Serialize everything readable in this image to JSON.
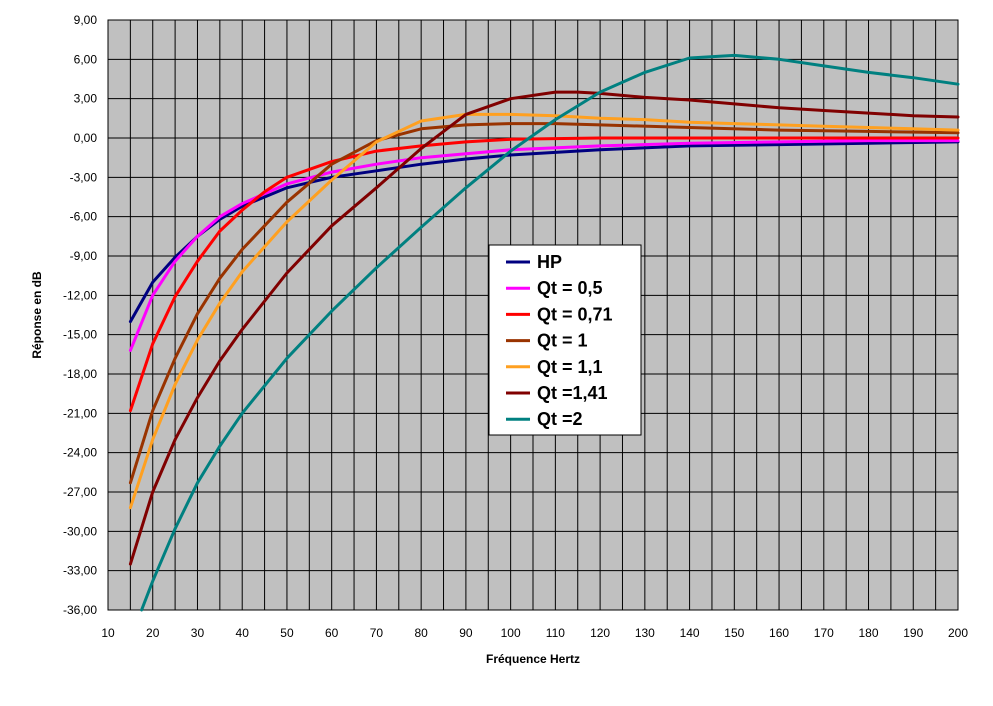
{
  "chart_data": {
    "type": "line",
    "title": "",
    "xlabel": "Fréquence Hertz",
    "ylabel": "Réponse en dB",
    "xlim": [
      10,
      200
    ],
    "ylim": [
      -36,
      9
    ],
    "xticks": [
      "10",
      "20",
      "30",
      "40",
      "50",
      "60",
      "70",
      "80",
      "90",
      "100",
      "110",
      "120",
      "130",
      "140",
      "150",
      "160",
      "170",
      "180",
      "190",
      "200"
    ],
    "yticks": [
      "9,00",
      "6,00",
      "3,00",
      "0,00",
      "-3,00",
      "-6,00",
      "-9,00",
      "-12,00",
      "-15,00",
      "-18,00",
      "-21,00",
      "-24,00",
      "-27,00",
      "-30,00",
      "-33,00",
      "-36,00"
    ],
    "grid": true,
    "legend_position": "center",
    "colors": {
      "plot_background": "#c0c0c0",
      "grid": "#000000"
    },
    "series": [
      {
        "name": "HP",
        "color": "#000080",
        "x": [
          15,
          20,
          25,
          30,
          35,
          40,
          50,
          60,
          70,
          80,
          90,
          100,
          120,
          140,
          160,
          180,
          200
        ],
        "y": [
          -14.0,
          -11.0,
          -9.1,
          -7.5,
          -6.2,
          -5.2,
          -3.8,
          -3.0,
          -2.5,
          -2.0,
          -1.6,
          -1.3,
          -0.9,
          -0.6,
          -0.5,
          -0.4,
          -0.3
        ]
      },
      {
        "name": "Qt = 0,5",
        "color": "#ff00ff",
        "x": [
          15,
          20,
          25,
          30,
          35,
          40,
          50,
          60,
          70,
          80,
          90,
          100,
          120,
          140,
          160,
          180,
          200
        ],
        "y": [
          -16.2,
          -12.0,
          -9.4,
          -7.5,
          -6.0,
          -5.0,
          -3.5,
          -2.6,
          -2.0,
          -1.5,
          -1.2,
          -0.9,
          -0.6,
          -0.4,
          -0.3,
          -0.2,
          -0.2
        ]
      },
      {
        "name": "Qt = 0,71",
        "color": "#ff0000",
        "x": [
          15,
          20,
          25,
          30,
          35,
          40,
          45,
          50,
          60,
          70,
          80,
          90,
          100,
          120,
          140,
          160,
          180,
          200
        ],
        "y": [
          -20.8,
          -15.7,
          -12.1,
          -9.4,
          -7.1,
          -5.5,
          -4.1,
          -3.0,
          -1.8,
          -1.0,
          -0.6,
          -0.3,
          -0.1,
          0.0,
          0.0,
          0.0,
          0.0,
          0.0
        ]
      },
      {
        "name": "Qt = 1",
        "color": "#993300",
        "x": [
          15,
          20,
          25,
          30,
          35,
          40,
          50,
          60,
          70,
          80,
          90,
          100,
          110,
          120,
          140,
          160,
          180,
          200
        ],
        "y": [
          -26.3,
          -20.8,
          -16.8,
          -13.4,
          -10.7,
          -8.5,
          -4.9,
          -2.0,
          -0.2,
          0.7,
          1.0,
          1.1,
          1.1,
          1.0,
          0.8,
          0.6,
          0.5,
          0.4
        ]
      },
      {
        "name": "Qt = 1,1",
        "color": "#ffa020",
        "x": [
          15,
          20,
          25,
          30,
          35,
          40,
          50,
          60,
          70,
          80,
          90,
          100,
          110,
          120,
          130,
          140,
          150,
          160,
          170,
          180,
          190,
          200
        ],
        "y": [
          -28.2,
          -23.0,
          -18.8,
          -15.4,
          -12.6,
          -10.2,
          -6.4,
          -3.2,
          -0.3,
          1.3,
          1.8,
          1.8,
          1.7,
          1.5,
          1.4,
          1.2,
          1.1,
          1.0,
          0.9,
          0.8,
          0.7,
          0.6
        ]
      },
      {
        "name": "Qt =1,41",
        "color": "#800000",
        "x": [
          15,
          20,
          25,
          30,
          35,
          40,
          50,
          60,
          70,
          80,
          90,
          100,
          110,
          115,
          120,
          130,
          140,
          150,
          160,
          170,
          180,
          190,
          200
        ],
        "y": [
          -32.5,
          -27.0,
          -23.0,
          -19.8,
          -17.0,
          -14.6,
          -10.3,
          -6.7,
          -3.8,
          -0.8,
          1.8,
          3.0,
          3.5,
          3.5,
          3.4,
          3.1,
          2.9,
          2.6,
          2.3,
          2.1,
          1.9,
          1.7,
          1.6
        ]
      },
      {
        "name": "Qt =2",
        "color": "#008080",
        "x": [
          17.5,
          20,
          25,
          30,
          35,
          40,
          50,
          60,
          70,
          80,
          90,
          100,
          110,
          120,
          130,
          140,
          150,
          160,
          170,
          180,
          190,
          200
        ],
        "y": [
          -36.0,
          -33.8,
          -29.8,
          -26.3,
          -23.5,
          -21.0,
          -16.8,
          -13.2,
          -9.9,
          -6.8,
          -3.8,
          -1.0,
          1.4,
          3.5,
          5.0,
          6.1,
          6.3,
          6.0,
          5.5,
          5.0,
          4.6,
          4.1
        ]
      }
    ]
  }
}
